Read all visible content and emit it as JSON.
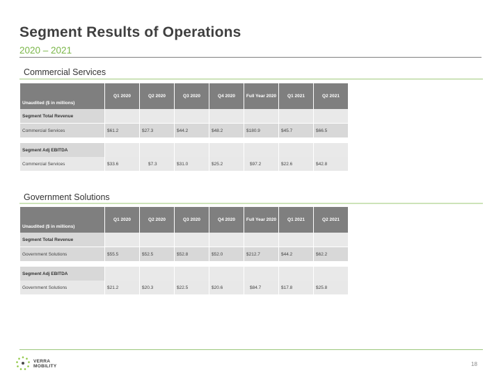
{
  "title": "Segment Results of Operations",
  "subtitle": "2020 – 2021",
  "accent_color": "#7ab648",
  "columns": [
    "Unaudited ($ in millions)",
    "Q1 2020",
    "Q2 2020",
    "Q3 2020",
    "Q4 2020",
    "Full Year 2020",
    "Q1 2021",
    "Q2 2021"
  ],
  "sections": [
    {
      "heading": "Commercial Services",
      "revenue_label": "Segment Total Revenue",
      "revenue_row": [
        "Commercial Services",
        "$61.2",
        "$27.3",
        "$44.2",
        "$48.2",
        "$180.9",
        "$45.7",
        "$66.5"
      ],
      "ebitda_label": "Segment Adj EBITDA",
      "ebitda_row": [
        "Commercial Services",
        "$33.6",
        "$7.3",
        "$31.0",
        "$25.2",
        "$97.2",
        "$22.6",
        "$42.8"
      ]
    },
    {
      "heading": "Government Solutions",
      "revenue_label": "Segment Total Revenue",
      "revenue_row": [
        "Government Solutions",
        "$55.5",
        "$52.5",
        "$52.8",
        "$52.0",
        "$212.7",
        "$44.2",
        "$62.2"
      ],
      "ebitda_label": "Segment Adj EBITDA",
      "ebitda_row": [
        "Government Solutions",
        "$21.2",
        "$20.3",
        "$22.5",
        "$20.6",
        "$84.7",
        "$17.8",
        "$25.8"
      ]
    }
  ],
  "logo_text": [
    "VERRA",
    "MOBILITY"
  ],
  "page_number": "18"
}
